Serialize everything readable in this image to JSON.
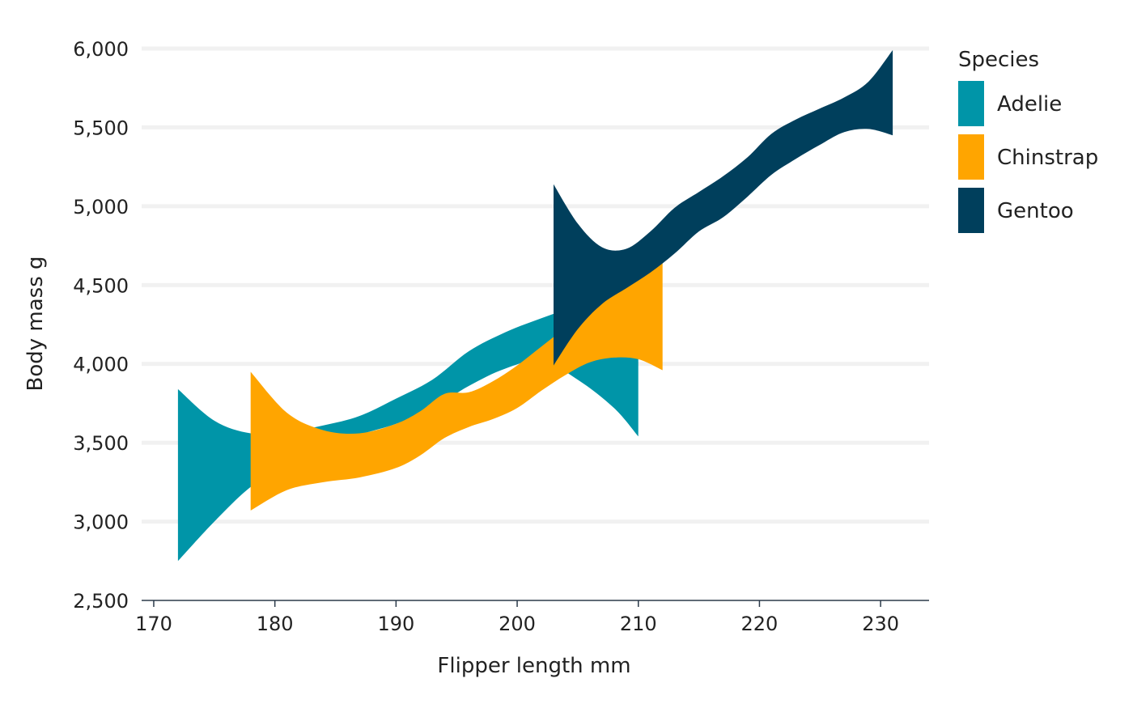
{
  "chart_data": {
    "type": "area",
    "xlabel": "Flipper length mm",
    "ylabel": "Body mass g",
    "xlim": [
      169,
      234
    ],
    "ylim": [
      2500,
      6000
    ],
    "x_ticks": [
      170,
      180,
      190,
      200,
      210,
      220,
      230
    ],
    "x_tick_labels": [
      "170",
      "180",
      "190",
      "200",
      "210",
      "220",
      "230"
    ],
    "y_ticks": [
      2500,
      3000,
      3500,
      4000,
      4500,
      5000,
      5500,
      6000
    ],
    "y_tick_labels": [
      "2,500",
      "3,000",
      "3,500",
      "4,000",
      "4,500",
      "5,000",
      "5,500",
      "6,000"
    ],
    "grid": "horizontal",
    "legend": {
      "title": "Species",
      "position": "right"
    },
    "series": [
      {
        "name": "Adelie",
        "color": "#0095A8",
        "x": [
          172,
          175,
          178,
          181,
          184,
          187,
          190,
          193,
          196,
          199,
          202,
          205,
          208,
          210
        ],
        "upper": [
          3840,
          3640,
          3560,
          3570,
          3610,
          3670,
          3780,
          3900,
          4080,
          4200,
          4290,
          4370,
          4440,
          4500
        ],
        "lower": [
          2750,
          3000,
          3220,
          3360,
          3460,
          3550,
          3620,
          3720,
          3860,
          3970,
          4020,
          3900,
          3720,
          3540
        ]
      },
      {
        "name": "Chinstrap",
        "color": "#FFA500",
        "x": [
          178,
          181,
          184,
          187,
          190,
          192,
          194,
          196,
          198,
          200,
          202,
          204,
          206,
          208,
          210,
          212
        ],
        "upper": [
          3950,
          3690,
          3580,
          3560,
          3620,
          3700,
          3810,
          3820,
          3890,
          3990,
          4110,
          4230,
          4340,
          4440,
          4540,
          4660
        ],
        "lower": [
          3070,
          3200,
          3250,
          3280,
          3340,
          3420,
          3530,
          3600,
          3650,
          3720,
          3830,
          3930,
          4010,
          4040,
          4030,
          3960
        ]
      },
      {
        "name": "Gentoo",
        "color": "#003F5C",
        "x": [
          203,
          205,
          207,
          209,
          211,
          213,
          215,
          217,
          219,
          221,
          223,
          225,
          227,
          229,
          231
        ],
        "upper": [
          5140,
          4890,
          4740,
          4730,
          4840,
          4990,
          5090,
          5190,
          5310,
          5460,
          5550,
          5620,
          5690,
          5790,
          5990
        ],
        "lower": [
          3990,
          4220,
          4380,
          4480,
          4580,
          4700,
          4840,
          4930,
          5060,
          5200,
          5300,
          5390,
          5470,
          5490,
          5450
        ]
      }
    ]
  }
}
